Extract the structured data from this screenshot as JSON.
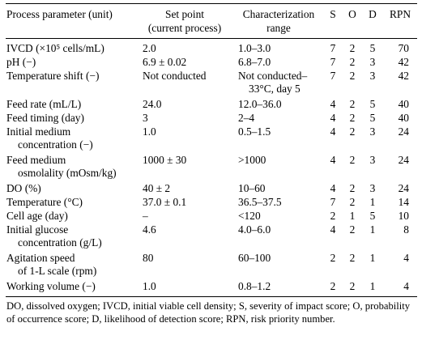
{
  "header": {
    "param": "Process parameter (unit)",
    "setpoint_1": "Set point",
    "setpoint_2": "(current process)",
    "char_1": "Characterization",
    "char_2": "range",
    "s": "S",
    "o": "O",
    "d": "D",
    "rpn": "RPN"
  },
  "rows": [
    {
      "param": [
        "IVCD (×10⁵ cells/mL)"
      ],
      "set": [
        "2.0"
      ],
      "range": [
        "1.0–3.0"
      ],
      "s": "7",
      "o": "2",
      "d": "5",
      "rpn": "70"
    },
    {
      "param": [
        "pH (−)"
      ],
      "set": [
        "6.9 ± 0.02"
      ],
      "range": [
        "6.8–7.0"
      ],
      "s": "7",
      "o": "2",
      "d": "3",
      "rpn": "42"
    },
    {
      "param": [
        "Temperature shift (−)"
      ],
      "set": [
        "Not conducted"
      ],
      "range": [
        "Not conducted–",
        "33°C, day 5"
      ],
      "s": "7",
      "o": "2",
      "d": "3",
      "rpn": "42"
    },
    {
      "param": [
        "Feed rate (mL/L)"
      ],
      "set": [
        "24.0"
      ],
      "range": [
        "12.0–36.0"
      ],
      "s": "4",
      "o": "2",
      "d": "5",
      "rpn": "40"
    },
    {
      "param": [
        "Feed timing (day)"
      ],
      "set": [
        "3"
      ],
      "range": [
        "2–4"
      ],
      "s": "4",
      "o": "2",
      "d": "5",
      "rpn": "40"
    },
    {
      "param": [
        "Initial medium",
        "concentration (−)"
      ],
      "set": [
        "1.0"
      ],
      "range": [
        "0.5–1.5"
      ],
      "s": "4",
      "o": "2",
      "d": "3",
      "rpn": "24"
    },
    {
      "param": [
        "Feed medium",
        "osmolality (mOsm/kg)"
      ],
      "set": [
        "1000 ± 30"
      ],
      "range": [
        ">1000"
      ],
      "s": "4",
      "o": "2",
      "d": "3",
      "rpn": "24"
    },
    {
      "param": [
        "DO (%)"
      ],
      "set": [
        "40 ± 2"
      ],
      "range": [
        "10–60"
      ],
      "s": "4",
      "o": "2",
      "d": "3",
      "rpn": "24"
    },
    {
      "param": [
        "Temperature (°C)"
      ],
      "set": [
        "37.0 ± 0.1"
      ],
      "range": [
        "36.5–37.5"
      ],
      "s": "7",
      "o": "2",
      "d": "1",
      "rpn": "14"
    },
    {
      "param": [
        "Cell age (day)"
      ],
      "set": [
        "–"
      ],
      "range": [
        "<120"
      ],
      "s": "2",
      "o": "1",
      "d": "5",
      "rpn": "10"
    },
    {
      "param": [
        "Initial glucose",
        "concentration (g/L)"
      ],
      "set": [
        "4.6"
      ],
      "range": [
        "4.0–6.0"
      ],
      "s": "4",
      "o": "2",
      "d": "1",
      "rpn": "8"
    },
    {
      "param": [
        "Agitation speed",
        "of 1-L scale (rpm)"
      ],
      "set": [
        "80"
      ],
      "range": [
        "60–100"
      ],
      "s": "2",
      "o": "2",
      "d": "1",
      "rpn": "4"
    },
    {
      "param": [
        "Working volume (−)"
      ],
      "set": [
        "1.0"
      ],
      "range": [
        "0.8–1.2"
      ],
      "s": "2",
      "o": "2",
      "d": "1",
      "rpn": "4"
    }
  ],
  "footnote": "DO, dissolved oxygen; IVCD, initial viable cell density; S, severity of impact score; O, probability of occurrence score; D, likelihood of detection score; RPN, risk priority number."
}
